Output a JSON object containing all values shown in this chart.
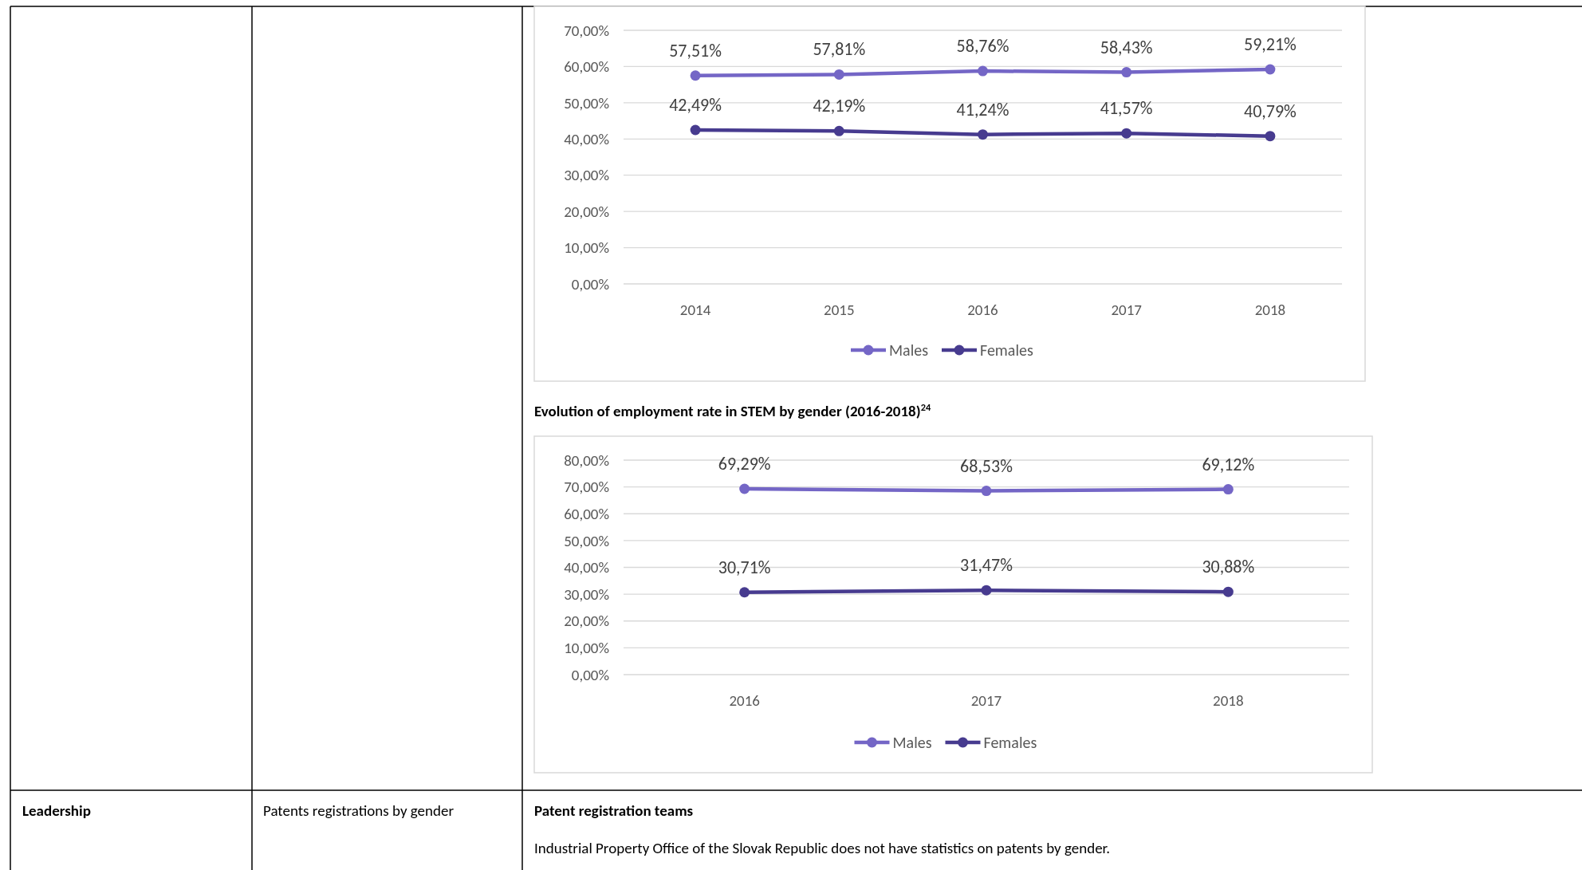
{
  "chart_data": [
    {
      "type": "line",
      "categories": [
        "2014",
        "2015",
        "2016",
        "2017",
        "2018"
      ],
      "series": [
        {
          "name": "Males",
          "color": "#7466c6",
          "values": [
            57.51,
            57.81,
            58.76,
            58.43,
            59.21
          ],
          "value_labels": [
            "57,51%",
            "57,81%",
            "58,76%",
            "58,43%",
            "59,21%"
          ]
        },
        {
          "name": "Females",
          "color": "#473b8f",
          "values": [
            42.49,
            42.19,
            41.24,
            41.57,
            40.79
          ],
          "value_labels": [
            "42,49%",
            "42,19%",
            "41,24%",
            "41,57%",
            "40,79%"
          ]
        }
      ],
      "ylim": [
        0,
        70
      ],
      "yticks": [
        {
          "value": 0,
          "label": "0,00%"
        },
        {
          "value": 10,
          "label": "10,00%"
        },
        {
          "value": 20,
          "label": "20,00%"
        },
        {
          "value": 30,
          "label": "30,00%"
        },
        {
          "value": 40,
          "label": "40,00%"
        },
        {
          "value": 50,
          "label": "50,00%"
        },
        {
          "value": 60,
          "label": "60,00%"
        },
        {
          "value": 70,
          "label": "70,00%"
        }
      ],
      "grid": "y",
      "legend": "bottom",
      "marker": "circle",
      "line_style": "solid"
    },
    {
      "type": "line",
      "title": "Evolution of employment rate in STEM by gender (2016-2018)$^{24}$",
      "categories": [
        "2016",
        "2017",
        "2018"
      ],
      "series": [
        {
          "name": "Males",
          "color": "#7466c6",
          "values": [
            69.29,
            68.53,
            69.12
          ],
          "value_labels": [
            "69,29%",
            "68,53%",
            "69,12%"
          ]
        },
        {
          "name": "Females",
          "color": "#473b8f",
          "values": [
            30.71,
            31.47,
            30.88
          ],
          "value_labels": [
            "30,71%",
            "31,47%",
            "30,88%"
          ]
        }
      ],
      "ylim": [
        0,
        80
      ],
      "yticks": [
        {
          "value": 0,
          "label": "0,00%"
        },
        {
          "value": 10,
          "label": "10,00%"
        },
        {
          "value": 20,
          "label": "20,00%"
        },
        {
          "value": 30,
          "label": "30,00%"
        },
        {
          "value": 40,
          "label": "40,00%"
        },
        {
          "value": 50,
          "label": "50,00%"
        },
        {
          "value": 60,
          "label": "60,00%"
        },
        {
          "value": 70,
          "label": "70,00%"
        },
        {
          "value": 80,
          "label": "80,00%"
        }
      ],
      "grid": "y",
      "legend": "bottom",
      "marker": "circle",
      "line_style": "solid"
    },
    {
      "type": "other",
      "title": "Patent registration teams",
      "annotations": [
        "Leadership",
        "Patents registrations by gender",
        "Industrial Property Office of the Slovak Republic does not have statistics on patents by gender."
      ]
    }
  ]
}
